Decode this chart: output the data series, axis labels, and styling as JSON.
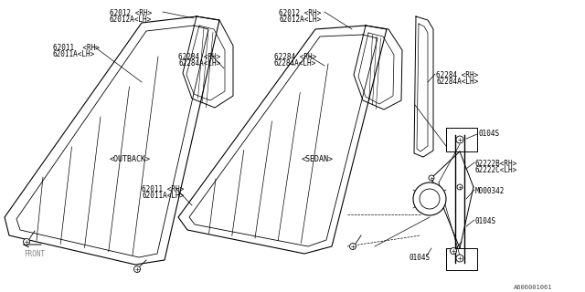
{
  "bg_color": "#ffffff",
  "line_color": "#000000",
  "fig_id": "A606001061",
  "labels": {
    "outback": "<OUTBACK>",
    "sedan": "<SEDAN>",
    "front": "FRONT",
    "p62012_rh_ob": "62012 <RH>",
    "p62012a_lh_ob": "62012A<LH>",
    "p62011_rh_ob": "62011  <RH>",
    "p62011a_lh_ob": "62011A<LH>",
    "p62284_rh_ob": "62284 <RH>",
    "p62284a_lh_ob": "62284A<LH>",
    "p62012_rh_sed": "62012 <RH>",
    "p62012a_lh_sed": "62012A<LH>",
    "p62284_rh_sed": "62284 <RH>",
    "p62284a_lh_sed": "62284A<LH>",
    "p62011_rh_sed": "62011 <RH>",
    "p62011a_lh_sed": "62011A<LH>",
    "p0104s_top": "0104S",
    "p62222b_rh": "62222B<RH>",
    "p62222c_lh": "62222C<LH>",
    "pm000342": "M000342",
    "p0104s_mid": "0104S",
    "p0104s_bot": "0104S"
  },
  "font_size": 5.5
}
